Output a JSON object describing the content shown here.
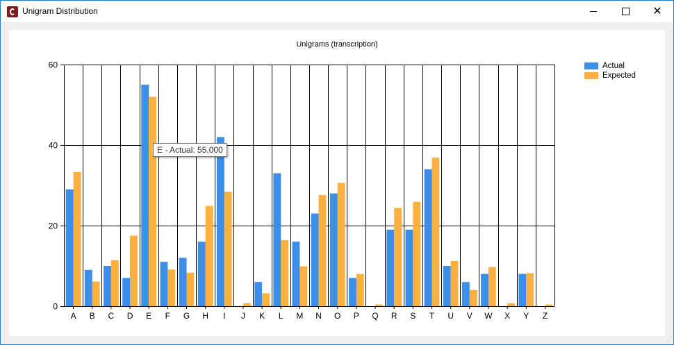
{
  "window": {
    "title": "Unigram Distribution",
    "icon": "app-logo-icon",
    "controls": {
      "minimize": "minimize-icon",
      "maximize": "maximize-icon",
      "close": "close-icon"
    }
  },
  "colors": {
    "actual": "#3d8ee8",
    "expected": "#fbb040",
    "grid": "#000000"
  },
  "tooltip": {
    "text": "E - Actual: 55,000"
  },
  "chart_data": {
    "type": "bar",
    "title": "Unigrams (transcription)",
    "xlabel": "",
    "ylabel": "",
    "ylim": [
      0,
      60
    ],
    "yticks": [
      0,
      20,
      40,
      60
    ],
    "grid": true,
    "legend_position": "top-right",
    "categories": [
      "A",
      "B",
      "C",
      "D",
      "E",
      "F",
      "G",
      "H",
      "I",
      "J",
      "K",
      "L",
      "M",
      "N",
      "O",
      "P",
      "Q",
      "R",
      "S",
      "T",
      "U",
      "V",
      "W",
      "X",
      "Y",
      "Z"
    ],
    "series": [
      {
        "name": "Actual",
        "values": [
          29,
          9,
          10,
          7,
          55,
          11,
          12,
          16,
          42,
          0,
          6,
          33,
          16,
          23,
          28,
          7,
          0,
          19,
          19,
          34,
          10,
          6,
          8,
          0,
          8,
          0
        ]
      },
      {
        "name": "Expected",
        "values": [
          33.3,
          6.1,
          11.4,
          17.5,
          52,
          9.1,
          8.3,
          24.9,
          28.4,
          0.7,
          3.2,
          16.4,
          9.9,
          27.6,
          30.6,
          8,
          0.4,
          24.4,
          25.9,
          36.9,
          11.2,
          4,
          9.7,
          0.7,
          8.2,
          0.4
        ]
      }
    ]
  }
}
